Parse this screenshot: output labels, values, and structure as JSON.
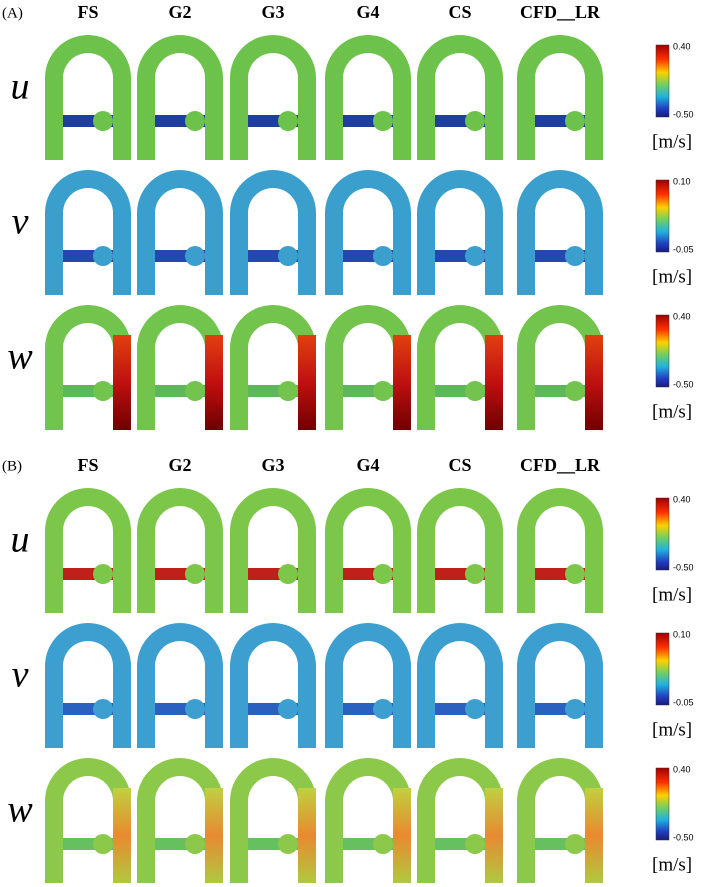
{
  "panels": [
    {
      "label": "(A)",
      "columns": [
        "FS",
        "G2",
        "G3",
        "G4",
        "CS",
        "CFD__LR"
      ],
      "rows": [
        {
          "symbol": "u",
          "colorbar_max": "0.40",
          "colorbar_min": "-0.50",
          "unit": "[m/s]"
        },
        {
          "symbol": "v",
          "colorbar_max": "0.10",
          "colorbar_min": "-0.05",
          "unit": "[m/s]"
        },
        {
          "symbol": "w",
          "colorbar_max": "0.40",
          "colorbar_min": "-0.50",
          "unit": "[m/s]"
        }
      ]
    },
    {
      "label": "(B)",
      "columns": [
        "FS",
        "G2",
        "G3",
        "G4",
        "CS",
        "CFD__LR"
      ],
      "rows": [
        {
          "symbol": "u",
          "colorbar_max": "0.40",
          "colorbar_min": "-0.50",
          "unit": "[m/s]"
        },
        {
          "symbol": "v",
          "colorbar_max": "0.10",
          "colorbar_min": "-0.05",
          "unit": "[m/s]"
        },
        {
          "symbol": "w",
          "colorbar_max": "0.40",
          "colorbar_min": "-0.50",
          "unit": "[m/s]"
        }
      ]
    }
  ]
}
